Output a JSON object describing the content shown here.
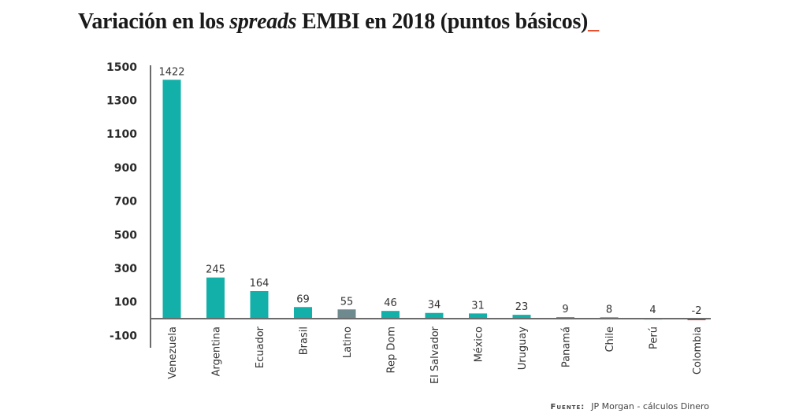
{
  "title": {
    "prefix": "Variación en los ",
    "italic": "spreads",
    "suffix": " EMBI en 2018 (puntos básicos)",
    "accent": "_"
  },
  "source": {
    "label": "Fuente:",
    "text": "JP Morgan - cálculos Dinero"
  },
  "colors": {
    "bar": "#12b0a8",
    "highlight": "#6e8a8e",
    "negative": "#c8323c",
    "accent": "#e8502f"
  },
  "chart_data": {
    "type": "bar",
    "title": "Variación en los spreads EMBI en 2018 (puntos básicos)",
    "xlabel": "",
    "ylabel": "",
    "categories": [
      "Venezuela",
      "Argentina",
      "Ecuador",
      "Brasil",
      "Latino",
      "Rep Dom",
      "El Salvador",
      "México",
      "Uruguay",
      "Panamá",
      "Chile",
      "Perú",
      "Colombia"
    ],
    "values": [
      1422,
      245,
      164,
      69,
      55,
      46,
      34,
      31,
      23,
      9,
      8,
      4,
      -2
    ],
    "highlight": [
      "Latino"
    ],
    "yticks": [
      1500,
      1300,
      1100,
      900,
      700,
      500,
      300,
      100,
      -100
    ],
    "ylim": [
      -100,
      1500
    ],
    "grid": false,
    "legend": "none"
  }
}
